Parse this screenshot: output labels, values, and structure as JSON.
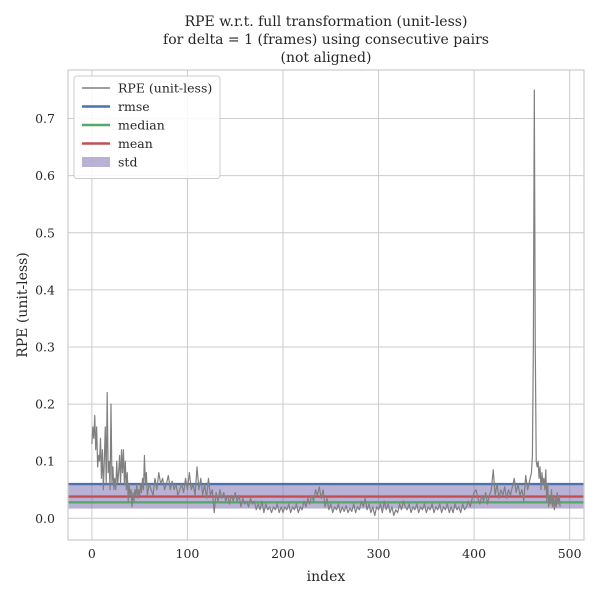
{
  "chart_data": {
    "type": "line",
    "title_lines": [
      "RPE w.r.t. full transformation (unit-less)",
      "for delta = 1 (frames) using consecutive pairs",
      "(not aligned)"
    ],
    "xlabel": "index",
    "ylabel": "RPE (unit-less)",
    "xlim": [
      -25,
      515
    ],
    "ylim": [
      -0.038,
      0.785
    ],
    "xticks": [
      0,
      100,
      200,
      300,
      400,
      500
    ],
    "yticks": [
      0.0,
      0.1,
      0.2,
      0.3,
      0.4,
      0.5,
      0.6,
      0.7
    ],
    "ytick_labels": [
      "0.0",
      "0.1",
      "0.2",
      "0.3",
      "0.4",
      "0.5",
      "0.6",
      "0.7"
    ],
    "grid": true,
    "legend_placement": "top-left",
    "legend": [
      {
        "label": "RPE (unit-less)",
        "kind": "line",
        "color": "#808080"
      },
      {
        "label": "rmse",
        "kind": "hline",
        "color": "#4c72b0"
      },
      {
        "label": "median",
        "kind": "hline",
        "color": "#55a868"
      },
      {
        "label": "mean",
        "kind": "hline",
        "color": "#c44e52"
      },
      {
        "label": "std",
        "kind": "band",
        "color": "#8172b2"
      }
    ],
    "stats": {
      "rmse": 0.06,
      "median": 0.028,
      "mean": 0.038,
      "std_lower": 0.017,
      "std_upper": 0.06
    },
    "series": [
      {
        "name": "RPE (unit-less)",
        "color": "#808080",
        "points": [
          [
            0,
            0.13
          ],
          [
            1,
            0.16
          ],
          [
            2,
            0.14
          ],
          [
            3,
            0.18
          ],
          [
            4,
            0.12
          ],
          [
            5,
            0.16
          ],
          [
            6,
            0.09
          ],
          [
            7,
            0.11
          ],
          [
            8,
            0.1
          ],
          [
            9,
            0.14
          ],
          [
            10,
            0.07
          ],
          [
            11,
            0.12
          ],
          [
            12,
            0.05
          ],
          [
            13,
            0.1
          ],
          [
            14,
            0.16
          ],
          [
            15,
            0.06
          ],
          [
            16,
            0.22
          ],
          [
            17,
            0.08
          ],
          [
            18,
            0.1
          ],
          [
            19,
            0.05
          ],
          [
            20,
            0.2
          ],
          [
            21,
            0.06
          ],
          [
            22,
            0.09
          ],
          [
            23,
            0.05
          ],
          [
            24,
            0.07
          ],
          [
            25,
            0.05
          ],
          [
            26,
            0.1
          ],
          [
            27,
            0.06
          ],
          [
            28,
            0.08
          ],
          [
            29,
            0.11
          ],
          [
            30,
            0.06
          ],
          [
            31,
            0.12
          ],
          [
            32,
            0.08
          ],
          [
            33,
            0.12
          ],
          [
            34,
            0.06
          ],
          [
            35,
            0.1
          ],
          [
            36,
            0.05
          ],
          [
            37,
            0.08
          ],
          [
            38,
            0.03
          ],
          [
            39,
            0.06
          ],
          [
            40,
            0.04
          ],
          [
            41,
            0.05
          ],
          [
            42,
            0.02
          ],
          [
            43,
            0.045
          ],
          [
            44,
            0.03
          ],
          [
            45,
            0.05
          ],
          [
            46,
            0.04
          ],
          [
            47,
            0.06
          ],
          [
            48,
            0.035
          ],
          [
            49,
            0.05
          ],
          [
            50,
            0.04
          ],
          [
            51,
            0.06
          ],
          [
            52,
            0.045
          ],
          [
            53,
            0.07
          ],
          [
            54,
            0.05
          ],
          [
            55,
            0.11
          ],
          [
            56,
            0.06
          ],
          [
            57,
            0.08
          ],
          [
            58,
            0.04
          ],
          [
            60,
            0.06
          ],
          [
            62,
            0.05
          ],
          [
            64,
            0.04
          ],
          [
            66,
            0.07
          ],
          [
            68,
            0.05
          ],
          [
            70,
            0.08
          ],
          [
            72,
            0.06
          ],
          [
            74,
            0.07
          ],
          [
            76,
            0.05
          ],
          [
            78,
            0.06
          ],
          [
            80,
            0.075
          ],
          [
            82,
            0.05
          ],
          [
            84,
            0.065
          ],
          [
            86,
            0.05
          ],
          [
            88,
            0.06
          ],
          [
            90,
            0.04
          ],
          [
            92,
            0.05
          ],
          [
            94,
            0.06
          ],
          [
            96,
            0.045
          ],
          [
            98,
            0.07
          ],
          [
            100,
            0.05
          ],
          [
            102,
            0.08
          ],
          [
            104,
            0.05
          ],
          [
            106,
            0.06
          ],
          [
            108,
            0.04
          ],
          [
            110,
            0.09
          ],
          [
            112,
            0.05
          ],
          [
            114,
            0.07
          ],
          [
            116,
            0.04
          ],
          [
            118,
            0.06
          ],
          [
            120,
            0.035
          ],
          [
            122,
            0.07
          ],
          [
            124,
            0.04
          ],
          [
            126,
            0.05
          ],
          [
            128,
            0.01
          ],
          [
            130,
            0.045
          ],
          [
            132,
            0.03
          ],
          [
            134,
            0.05
          ],
          [
            136,
            0.035
          ],
          [
            138,
            0.045
          ],
          [
            140,
            0.03
          ],
          [
            142,
            0.04
          ],
          [
            144,
            0.025
          ],
          [
            146,
            0.04
          ],
          [
            148,
            0.03
          ],
          [
            150,
            0.045
          ],
          [
            152,
            0.03
          ],
          [
            154,
            0.04
          ],
          [
            156,
            0.02
          ],
          [
            158,
            0.035
          ],
          [
            160,
            0.025
          ],
          [
            162,
            0.03
          ],
          [
            164,
            0.02
          ],
          [
            166,
            0.035
          ],
          [
            168,
            0.025
          ],
          [
            170,
            0.03
          ],
          [
            172,
            0.015
          ],
          [
            174,
            0.025
          ],
          [
            176,
            0.015
          ],
          [
            178,
            0.03
          ],
          [
            180,
            0.01
          ],
          [
            182,
            0.025
          ],
          [
            184,
            0.015
          ],
          [
            186,
            0.02
          ],
          [
            188,
            0.01
          ],
          [
            190,
            0.02
          ],
          [
            192,
            0.015
          ],
          [
            194,
            0.025
          ],
          [
            196,
            0.01
          ],
          [
            198,
            0.02
          ],
          [
            200,
            0.01
          ],
          [
            202,
            0.02
          ],
          [
            204,
            0.015
          ],
          [
            206,
            0.025
          ],
          [
            208,
            0.01
          ],
          [
            210,
            0.02
          ],
          [
            212,
            0.015
          ],
          [
            214,
            0.025
          ],
          [
            216,
            0.01
          ],
          [
            218,
            0.02
          ],
          [
            220,
            0.015
          ],
          [
            222,
            0.03
          ],
          [
            224,
            0.02
          ],
          [
            226,
            0.035
          ],
          [
            228,
            0.025
          ],
          [
            230,
            0.04
          ],
          [
            232,
            0.03
          ],
          [
            234,
            0.05
          ],
          [
            236,
            0.04
          ],
          [
            238,
            0.055
          ],
          [
            240,
            0.035
          ],
          [
            242,
            0.05
          ],
          [
            244,
            0.02
          ],
          [
            246,
            0.035
          ],
          [
            248,
            0.015
          ],
          [
            250,
            0.025
          ],
          [
            252,
            0.01
          ],
          [
            254,
            0.02
          ],
          [
            256,
            0.015
          ],
          [
            258,
            0.025
          ],
          [
            260,
            0.01
          ],
          [
            262,
            0.02
          ],
          [
            264,
            0.012
          ],
          [
            266,
            0.022
          ],
          [
            268,
            0.01
          ],
          [
            270,
            0.018
          ],
          [
            272,
            0.012
          ],
          [
            274,
            0.025
          ],
          [
            276,
            0.01
          ],
          [
            278,
            0.02
          ],
          [
            280,
            0.015
          ],
          [
            282,
            0.03
          ],
          [
            284,
            0.02
          ],
          [
            286,
            0.035
          ],
          [
            288,
            0.015
          ],
          [
            290,
            0.025
          ],
          [
            292,
            0.01
          ],
          [
            294,
            0.02
          ],
          [
            296,
            0.005
          ],
          [
            298,
            0.02
          ],
          [
            300,
            0.015
          ],
          [
            302,
            0.025
          ],
          [
            304,
            0.01
          ],
          [
            306,
            0.03
          ],
          [
            308,
            0.015
          ],
          [
            310,
            0.025
          ],
          [
            312,
            0.01
          ],
          [
            314,
            0.02
          ],
          [
            316,
            0.005
          ],
          [
            318,
            0.015
          ],
          [
            320,
            0.01
          ],
          [
            322,
            0.025
          ],
          [
            324,
            0.015
          ],
          [
            326,
            0.03
          ],
          [
            328,
            0.02
          ],
          [
            330,
            0.015
          ],
          [
            332,
            0.025
          ],
          [
            334,
            0.01
          ],
          [
            336,
            0.02
          ],
          [
            338,
            0.015
          ],
          [
            340,
            0.025
          ],
          [
            342,
            0.01
          ],
          [
            344,
            0.02
          ],
          [
            346,
            0.015
          ],
          [
            348,
            0.025
          ],
          [
            350,
            0.01
          ],
          [
            352,
            0.02
          ],
          [
            354,
            0.015
          ],
          [
            356,
            0.025
          ],
          [
            358,
            0.01
          ],
          [
            360,
            0.02
          ],
          [
            362,
            0.015
          ],
          [
            364,
            0.025
          ],
          [
            366,
            0.01
          ],
          [
            368,
            0.02
          ],
          [
            370,
            0.015
          ],
          [
            372,
            0.025
          ],
          [
            374,
            0.01
          ],
          [
            376,
            0.02
          ],
          [
            378,
            0.01
          ],
          [
            380,
            0.025
          ],
          [
            382,
            0.015
          ],
          [
            384,
            0.02
          ],
          [
            386,
            0.01
          ],
          [
            388,
            0.025
          ],
          [
            390,
            0.015
          ],
          [
            392,
            0.02
          ],
          [
            394,
            0.03
          ],
          [
            396,
            0.02
          ],
          [
            398,
            0.035
          ],
          [
            400,
            0.045
          ],
          [
            402,
            0.05
          ],
          [
            404,
            0.035
          ],
          [
            406,
            0.025
          ],
          [
            408,
            0.04
          ],
          [
            410,
            0.03
          ],
          [
            412,
            0.045
          ],
          [
            414,
            0.025
          ],
          [
            416,
            0.04
          ],
          [
            418,
            0.05
          ],
          [
            420,
            0.085
          ],
          [
            422,
            0.04
          ],
          [
            424,
            0.06
          ],
          [
            426,
            0.035
          ],
          [
            428,
            0.05
          ],
          [
            430,
            0.04
          ],
          [
            432,
            0.055
          ],
          [
            434,
            0.035
          ],
          [
            436,
            0.05
          ],
          [
            438,
            0.04
          ],
          [
            440,
            0.055
          ],
          [
            442,
            0.07
          ],
          [
            444,
            0.045
          ],
          [
            446,
            0.06
          ],
          [
            448,
            0.04
          ],
          [
            450,
            0.05
          ],
          [
            452,
            0.03
          ],
          [
            454,
            0.075
          ],
          [
            456,
            0.05
          ],
          [
            458,
            0.065
          ],
          [
            460,
            0.08
          ],
          [
            461,
            0.11
          ],
          [
            462,
            0.3
          ],
          [
            463,
            0.75
          ],
          [
            464,
            0.3
          ],
          [
            465,
            0.1
          ],
          [
            466,
            0.09
          ],
          [
            467,
            0.1
          ],
          [
            468,
            0.07
          ],
          [
            469,
            0.09
          ],
          [
            470,
            0.05
          ],
          [
            471,
            0.08
          ],
          [
            472,
            0.06
          ],
          [
            473,
            0.07
          ],
          [
            474,
            0.05
          ],
          [
            475,
            0.085
          ],
          [
            476,
            0.03
          ],
          [
            477,
            0.06
          ],
          [
            478,
            0.02
          ],
          [
            479,
            0.04
          ],
          [
            480,
            0.025
          ],
          [
            481,
            0.05
          ],
          [
            482,
            0.02
          ],
          [
            483,
            0.04
          ],
          [
            484,
            0.015
          ],
          [
            485,
            0.035
          ],
          [
            486,
            0.02
          ],
          [
            487,
            0.045
          ],
          [
            488,
            0.025
          ],
          [
            489,
            0.04
          ],
          [
            490,
            0.02
          ]
        ]
      }
    ]
  }
}
